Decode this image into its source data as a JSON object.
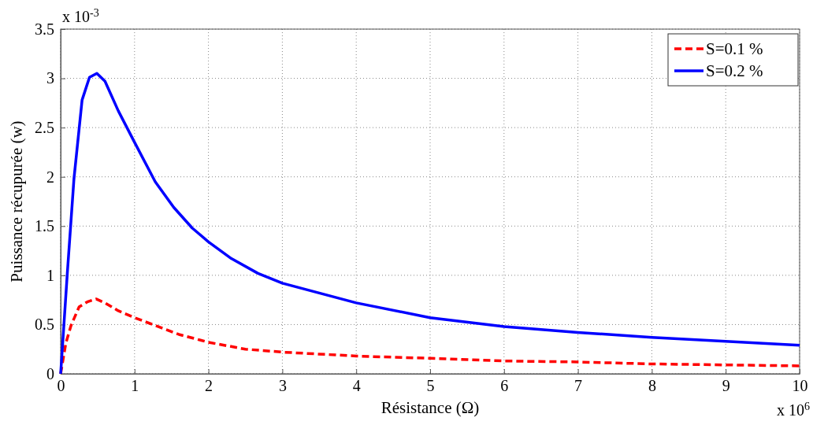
{
  "chart_data": {
    "type": "line",
    "xlabel": "Résistance (Ω)",
    "ylabel": "Puissance récupurée (w)",
    "annotations": [
      "x 10$^{-3}$",
      "x 10$^{6}$"
    ],
    "xlim": [
      0,
      10
    ],
    "xticks": [
      0,
      1,
      2,
      3,
      4,
      5,
      6,
      7,
      8,
      9,
      10
    ],
    "ylim": [
      0,
      3.5
    ],
    "yticks": [
      0,
      0.5,
      1,
      1.5,
      2,
      2.5,
      3,
      3.5
    ],
    "grid": true,
    "legend": "top right",
    "series": [
      {
        "name": "S=0.1 %",
        "color": "#ff0000",
        "line_style": "dashed",
        "x": [
          0,
          0.07,
          0.14,
          0.25,
          0.36,
          0.48,
          0.6,
          0.78,
          1,
          1.28,
          1.6,
          2,
          2.5,
          3,
          4,
          5,
          6,
          7,
          8,
          9,
          10
        ],
        "values": [
          0,
          0.31,
          0.49,
          0.68,
          0.73,
          0.76,
          0.72,
          0.64,
          0.57,
          0.49,
          0.4,
          0.32,
          0.25,
          0.22,
          0.18,
          0.157,
          0.13,
          0.12,
          0.1,
          0.09,
          0.08
        ]
      },
      {
        "name": "S=0.2 %",
        "color": "#0000ff",
        "line_style": "solid",
        "x": [
          0,
          0.09,
          0.18,
          0.29,
          0.39,
          0.49,
          0.6,
          0.78,
          1,
          1.28,
          1.53,
          1.78,
          2,
          2.31,
          2.67,
          3,
          4,
          5,
          6,
          7,
          8,
          9,
          10
        ],
        "values": [
          0,
          1.02,
          1.98,
          2.78,
          3.01,
          3.05,
          2.97,
          2.67,
          2.35,
          1.95,
          1.69,
          1.48,
          1.34,
          1.17,
          1.02,
          0.92,
          0.72,
          0.57,
          0.48,
          0.42,
          0.37,
          0.33,
          0.29
        ]
      }
    ]
  }
}
